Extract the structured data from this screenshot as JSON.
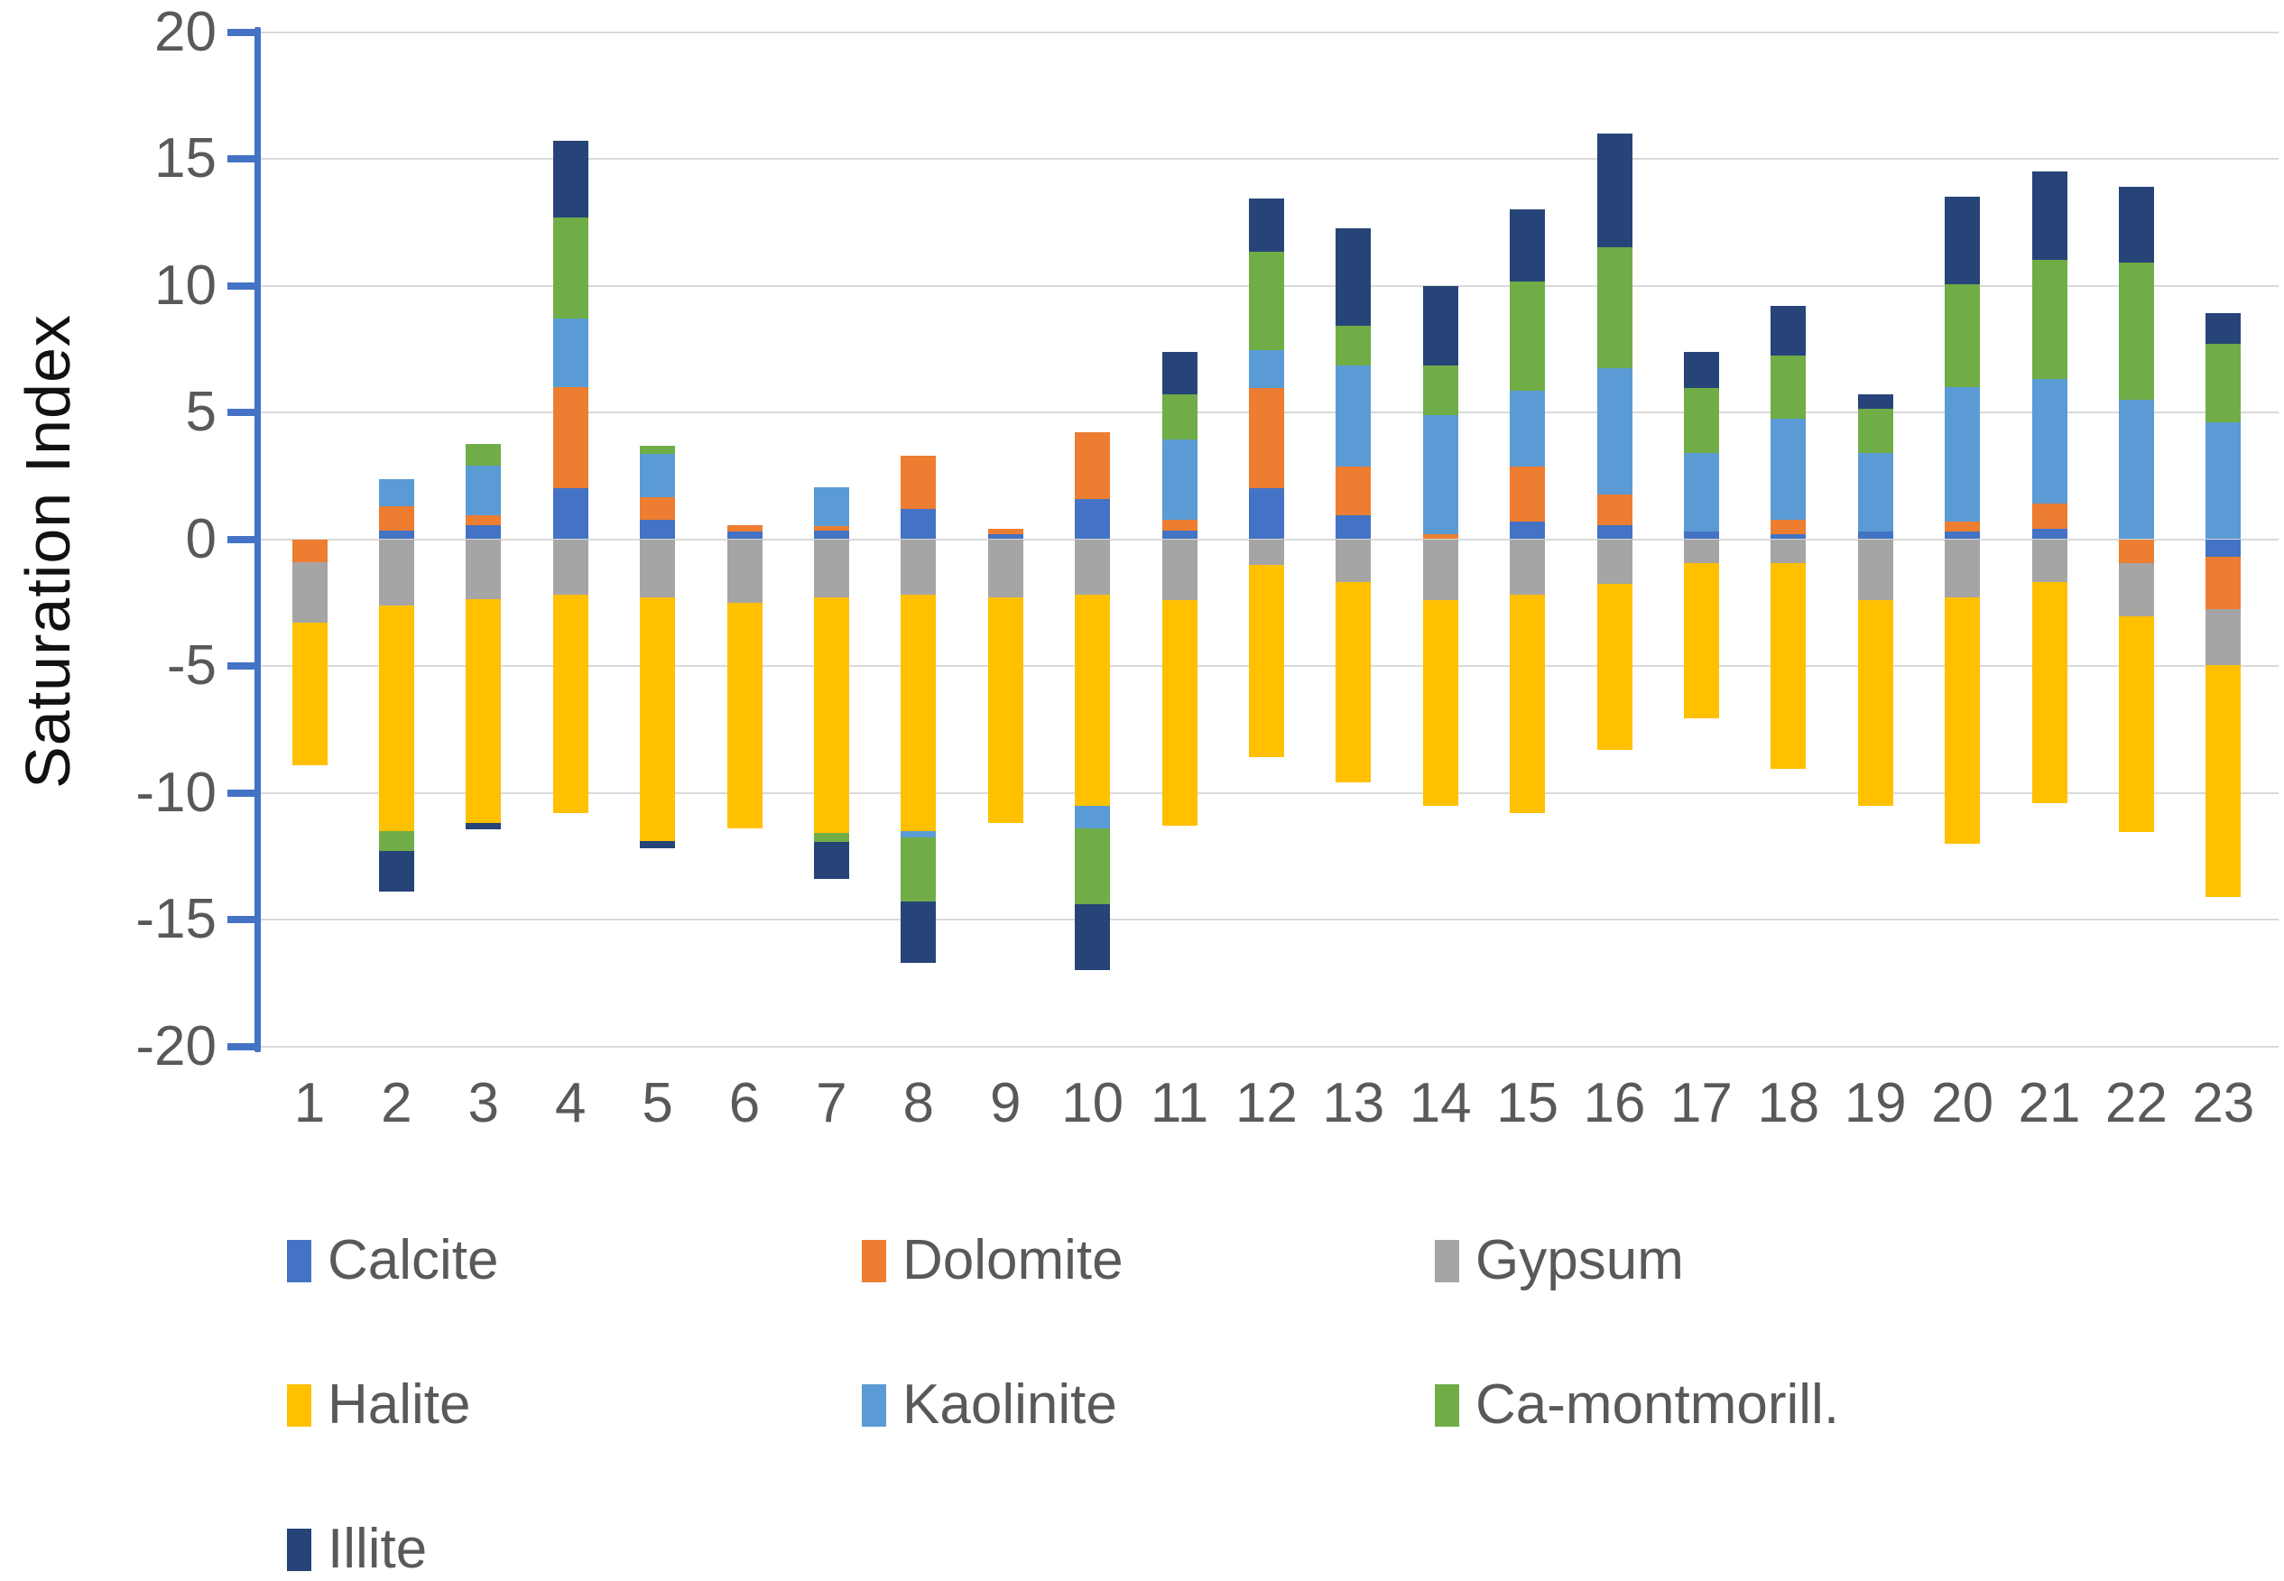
{
  "chart": {
    "y_axis_title": "Saturation Index",
    "y_tick_labels": [
      "20",
      "15",
      "10",
      "5",
      "0",
      "-5",
      "-10",
      "-15",
      "-20"
    ],
    "y_tick_values": [
      20,
      15,
      10,
      5,
      0,
      -5,
      -10,
      -15,
      -20
    ],
    "colors": {
      "axis": "#4472c4",
      "gridline": "#d9d9d9",
      "tick_label": "#595959",
      "axis_title": "#111111"
    }
  },
  "chart_data": {
    "type": "bar",
    "stacked": true,
    "title": "",
    "xlabel": "",
    "ylabel": "Saturation Index",
    "ylim": [
      -20,
      20
    ],
    "grid": true,
    "legend_position": "bottom",
    "categories": [
      "1",
      "2",
      "3",
      "4",
      "5",
      "6",
      "7",
      "8",
      "9",
      "10",
      "11",
      "12",
      "13",
      "14",
      "15",
      "16",
      "17",
      "18",
      "19",
      "20",
      "21",
      "22",
      "23"
    ],
    "series": [
      {
        "name": "Calcite",
        "color": "#4472c4",
        "values": [
          0,
          0.35,
          0.55,
          2.0,
          0.75,
          0.3,
          0.35,
          1.2,
          0.2,
          1.6,
          0.35,
          2.0,
          0.95,
          0,
          0.7,
          0.55,
          0.3,
          0.2,
          0.3,
          0.3,
          0.4,
          0,
          -0.7
        ]
      },
      {
        "name": "Dolomite",
        "color": "#ed7d31",
        "values": [
          -0.9,
          0.95,
          0.4,
          4.0,
          0.9,
          0.25,
          0.15,
          2.1,
          0.2,
          2.6,
          0.4,
          3.95,
          1.9,
          0.2,
          2.15,
          1.2,
          0,
          0.55,
          0,
          0.4,
          1.0,
          -0.95,
          -2.05
        ]
      },
      {
        "name": "Gypsum",
        "color": "#a5a5a5",
        "values": [
          -2.4,
          -2.6,
          -2.35,
          -2.2,
          -2.3,
          -2.5,
          -2.3,
          -2.2,
          -2.3,
          -2.2,
          -2.4,
          -1.0,
          -1.7,
          -2.4,
          -2.2,
          -1.75,
          -0.95,
          -0.95,
          -2.4,
          -2.3,
          -1.7,
          -2.1,
          -2.2
        ]
      },
      {
        "name": "Halite",
        "color": "#ffc000",
        "values": [
          -5.6,
          -8.9,
          -8.85,
          -8.6,
          -9.6,
          -8.9,
          -9.3,
          -9.3,
          -8.9,
          -8.3,
          -8.9,
          -7.6,
          -7.9,
          -8.1,
          -8.6,
          -6.55,
          -6.1,
          -8.1,
          -8.1,
          -9.7,
          -8.7,
          -8.5,
          -9.15
        ]
      },
      {
        "name": "Kaolinite",
        "color": "#5b9bd5",
        "values": [
          0,
          1.05,
          1.95,
          2.7,
          1.7,
          0,
          1.55,
          -0.25,
          0,
          -0.9,
          3.2,
          1.5,
          4.0,
          4.7,
          3.0,
          5.0,
          3.1,
          4.0,
          3.1,
          5.3,
          4.9,
          5.5,
          4.6
        ]
      },
      {
        "name": "Ca-montmorill.",
        "color": "#70ad47",
        "values": [
          0,
          -0.8,
          0.85,
          4.0,
          0.35,
          0,
          -0.35,
          -2.55,
          0,
          -3.0,
          1.75,
          3.9,
          1.55,
          1.95,
          4.3,
          4.75,
          2.55,
          2.5,
          1.75,
          4.05,
          4.7,
          5.4,
          3.1
        ]
      },
      {
        "name": "Illite",
        "color": "#264478",
        "values": [
          0,
          -1.6,
          -0.25,
          3.0,
          -0.3,
          0,
          -1.45,
          -2.4,
          0,
          -2.6,
          1.7,
          2.1,
          3.85,
          3.15,
          2.85,
          4.5,
          1.45,
          1.95,
          0.55,
          3.45,
          3.5,
          3.0,
          1.2
        ]
      }
    ]
  }
}
